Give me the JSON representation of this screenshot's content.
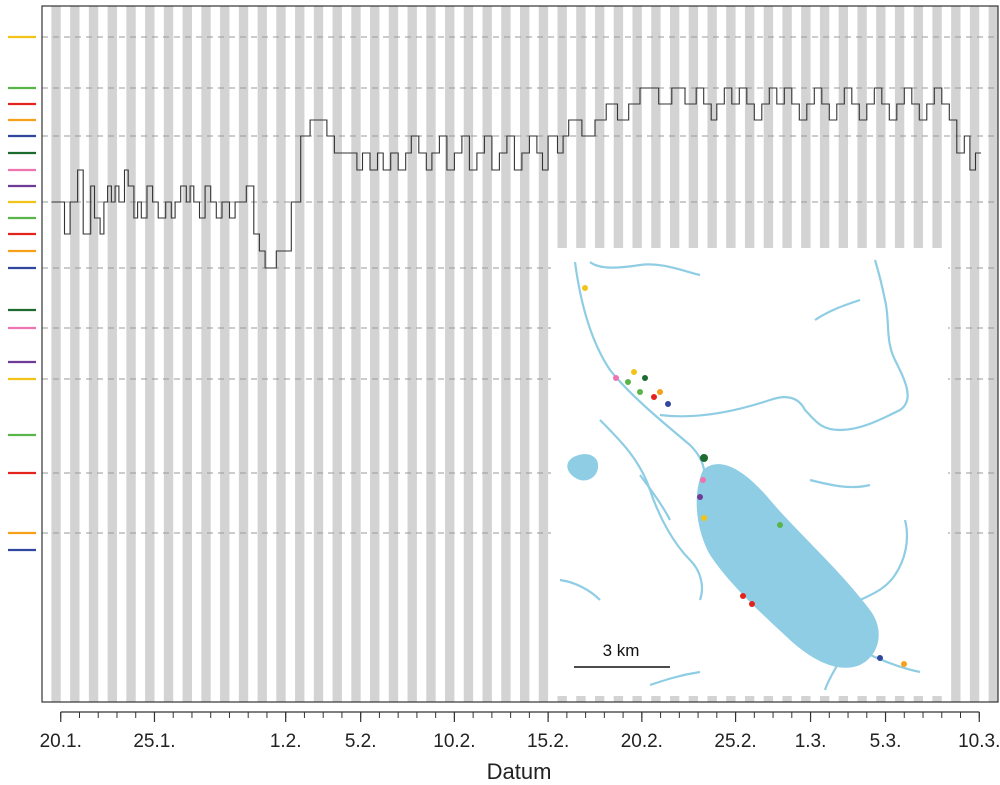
{
  "chart_data": {
    "type": "line",
    "title": "",
    "xlabel": "Datum",
    "ylabel": "",
    "x_tick_labels": [
      "20.1.",
      "25.1.",
      "1.2.",
      "5.2.",
      "10.2.",
      "15.2.",
      "20.2.",
      "25.2.",
      "1.3.",
      "5.3.",
      "10.3."
    ],
    "x_tick_days": [
      20,
      25,
      32,
      36,
      41,
      46,
      51,
      56,
      60,
      64,
      69
    ],
    "x_range_days": [
      19,
      70
    ],
    "series": [
      {
        "color": "#333333",
        "x_days": [
          19.5,
          20.2,
          20.5,
          20.9,
          21.2,
          21.6,
          21.8,
          22.1,
          22.3,
          22.5,
          22.7,
          22.9,
          23.1,
          23.4,
          23.6,
          23.9,
          24.1,
          24.3,
          24.6,
          24.9,
          25.2,
          25.6,
          25.9,
          26.1,
          26.4,
          26.7,
          26.9,
          27.1,
          27.4,
          27.7,
          28.0,
          28.3,
          28.6,
          28.8,
          29.0,
          29.3,
          29.6,
          29.9,
          30.3,
          30.6,
          30.9,
          31.2,
          31.5,
          31.9,
          32.3,
          32.8,
          33.3,
          33.8,
          34.2,
          34.6,
          35.0,
          35.2,
          35.5,
          35.8,
          36.1,
          36.5,
          36.9,
          37.2,
          37.6,
          38.0,
          38.4,
          38.7,
          39.1,
          39.5,
          39.8,
          40.2,
          40.6,
          41.0,
          41.4,
          41.8,
          42.2,
          42.6,
          43.0,
          43.4,
          43.8,
          44.2,
          44.6,
          45.0,
          45.4,
          45.7,
          46.0,
          46.2,
          46.5,
          46.8,
          47.1,
          47.5,
          47.8,
          48.1,
          48.5,
          48.8,
          49.1,
          49.4,
          49.7,
          50.0,
          50.3,
          50.6,
          50.9,
          51.3,
          51.6,
          51.9,
          52.2,
          52.6,
          52.9,
          53.3,
          53.6,
          53.9,
          54.3,
          54.7,
          55.0,
          55.4,
          55.8,
          56.2,
          56.6,
          57.0,
          57.4,
          57.8,
          58.2,
          58.6,
          59.0,
          59.4,
          59.8,
          60.2,
          60.6,
          61.0,
          61.4,
          61.8,
          62.2,
          62.6,
          63.0,
          63.4,
          63.8,
          64.2,
          64.6,
          65.0,
          65.4,
          65.8,
          66.2,
          66.6,
          67.0,
          67.4,
          67.8,
          68.2,
          68.5,
          68.8
        ],
        "levels": [
          8,
          10,
          8,
          6,
          10,
          7,
          9,
          10,
          8,
          7,
          8,
          7,
          8,
          6,
          7,
          9,
          8,
          9,
          7,
          8,
          9,
          8,
          9,
          8,
          7,
          8,
          7,
          8,
          9,
          7,
          8,
          9,
          8,
          8,
          9,
          8,
          8,
          7,
          10,
          11,
          12,
          12,
          11,
          11,
          8,
          4,
          3,
          3,
          4,
          5,
          5,
          5,
          5,
          6,
          5,
          6,
          5,
          6,
          5,
          6,
          5,
          4,
          5,
          6,
          5,
          4,
          6,
          5,
          4,
          6,
          5,
          4,
          6,
          5,
          4,
          6,
          5,
          4,
          5,
          6,
          4,
          4,
          5,
          4,
          3,
          3,
          4,
          4,
          3,
          3,
          2,
          2,
          3,
          3,
          2,
          2,
          1,
          1,
          1,
          2,
          2,
          1,
          1,
          2,
          2,
          1,
          2,
          3,
          2,
          1,
          2,
          1,
          2,
          3,
          2,
          1,
          2,
          1,
          2,
          3,
          2,
          1,
          2,
          3,
          2,
          1,
          2,
          3,
          2,
          1,
          2,
          3,
          2,
          1,
          2,
          3,
          2,
          1,
          2,
          3,
          5,
          4,
          6,
          5
        ]
      }
    ],
    "level_markers": [
      {
        "label_color": "#f2c418"
      },
      {
        "label_color": "#59b449"
      },
      {
        "label_color": "#e3241e"
      },
      {
        "label_color": "#f7a01a"
      },
      {
        "label_color": "#3047a0"
      },
      {
        "label_color": "#1d6b2e"
      },
      {
        "label_color": "#ee74b0"
      },
      {
        "label_color": "#6e3b96"
      },
      {
        "label_color": "#f2c418"
      },
      {
        "label_color": "#59b449"
      },
      {
        "label_color": "#e3241e"
      },
      {
        "label_color": "#f7a01a"
      },
      {
        "label_color": "#3047a0"
      },
      {
        "label_color": "#1d6b2e"
      },
      {
        "label_color": "#ee74b0"
      },
      {
        "label_color": "#6e3b96"
      },
      {
        "label_color": "#f2c418"
      },
      {
        "label_color": "#59b449"
      },
      {
        "label_color": "#e3241e"
      },
      {
        "label_color": "#f7a01a"
      },
      {
        "label_color": "#3047a0"
      }
    ],
    "grid": true,
    "inset_map": {
      "scale_label": "3 km",
      "lake_color": "#8ecde3",
      "river_color": "#8ecde3"
    }
  }
}
